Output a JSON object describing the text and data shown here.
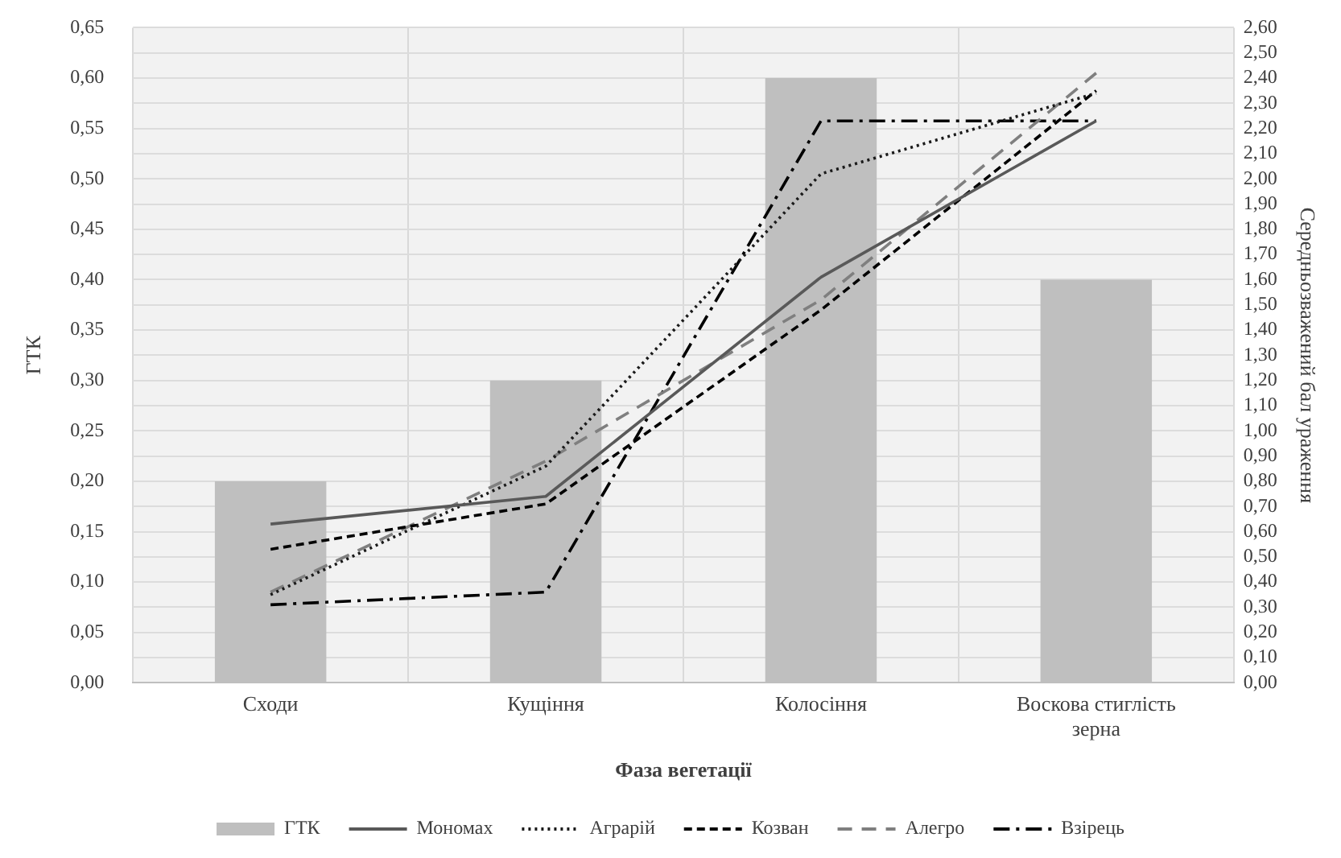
{
  "chart_data": {
    "type": "bar",
    "xlabel": "Фаза вегетації",
    "ylabel": "ГТК",
    "y2label": "Середньозважений бал ураження",
    "categories": [
      "Сходи",
      "Кущіння",
      "Колосіння",
      "Воскова стиглість зерна"
    ],
    "series": [
      {
        "name": "ГТК",
        "color": "#bfbfbf",
        "values": [
          0.2,
          0.3,
          0.6,
          0.4
        ]
      },
      {
        "name": "Мономах",
        "type": "line",
        "axis": "y2",
        "color": "#595959",
        "line_style": "solid",
        "values": [
          0.63,
          0.74,
          1.61,
          2.23
        ]
      },
      {
        "name": "Аграрій",
        "type": "line",
        "axis": "y2",
        "color": "#1a1a1a",
        "line_style": "dotted",
        "values": [
          0.35,
          0.86,
          2.02,
          2.34
        ]
      },
      {
        "name": "Козван",
        "type": "line",
        "axis": "y2",
        "color": "#000000",
        "line_style": "dashed",
        "values": [
          0.53,
          0.71,
          1.48,
          2.35
        ]
      },
      {
        "name": "Алегро",
        "type": "line",
        "axis": "y2",
        "color": "#7f7f7f",
        "line_style": "longdash",
        "values": [
          0.36,
          0.88,
          1.52,
          2.42
        ]
      },
      {
        "name": "Взірець",
        "type": "line",
        "axis": "y2",
        "color": "#000000",
        "line_style": "dashdot",
        "values": [
          0.31,
          0.36,
          2.23,
          2.23
        ]
      }
    ],
    "ylim": [
      0,
      0.65
    ],
    "yticks": [
      {
        "value": 0,
        "label": "0,00"
      },
      {
        "value": 0.05,
        "label": "0,05"
      },
      {
        "value": 0.1,
        "label": "0,10"
      },
      {
        "value": 0.15,
        "label": "0,15"
      },
      {
        "value": 0.2,
        "label": "0,20"
      },
      {
        "value": 0.25,
        "label": "0,25"
      },
      {
        "value": 0.3,
        "label": "0,30"
      },
      {
        "value": 0.35,
        "label": "0,35"
      },
      {
        "value": 0.4,
        "label": "0,40"
      },
      {
        "value": 0.45,
        "label": "0,45"
      },
      {
        "value": 0.5,
        "label": "0,50"
      },
      {
        "value": 0.55,
        "label": "0,55"
      },
      {
        "value": 0.6,
        "label": "0,60"
      },
      {
        "value": 0.65,
        "label": "0,65"
      }
    ],
    "y2lim": [
      0,
      2.6
    ],
    "y2ticks": [
      {
        "value": 0,
        "label": "0,00"
      },
      {
        "value": 0.1,
        "label": "0,10"
      },
      {
        "value": 0.2,
        "label": "0,20"
      },
      {
        "value": 0.3,
        "label": "0,30"
      },
      {
        "value": 0.4,
        "label": "0,40"
      },
      {
        "value": 0.5,
        "label": "0,50"
      },
      {
        "value": 0.6,
        "label": "0,60"
      },
      {
        "value": 0.7,
        "label": "0,70"
      },
      {
        "value": 0.8,
        "label": "0,80"
      },
      {
        "value": 0.9,
        "label": "0,90"
      },
      {
        "value": 1.0,
        "label": "1,00"
      },
      {
        "value": 1.1,
        "label": "1,10"
      },
      {
        "value": 1.2,
        "label": "1,20"
      },
      {
        "value": 1.3,
        "label": "1,30"
      },
      {
        "value": 1.4,
        "label": "1,40"
      },
      {
        "value": 1.5,
        "label": "1,50"
      },
      {
        "value": 1.6,
        "label": "1,60"
      },
      {
        "value": 1.7,
        "label": "1,70"
      },
      {
        "value": 1.8,
        "label": "1,80"
      },
      {
        "value": 1.9,
        "label": "1,90"
      },
      {
        "value": 2.0,
        "label": "2,00"
      },
      {
        "value": 2.1,
        "label": "2,10"
      },
      {
        "value": 2.2,
        "label": "2,20"
      },
      {
        "value": 2.3,
        "label": "2,30"
      },
      {
        "value": 2.4,
        "label": "2,40"
      },
      {
        "value": 2.5,
        "label": "2,50"
      },
      {
        "value": 2.6,
        "label": "2,60"
      }
    ],
    "grid": true,
    "legend": "bottom",
    "marker": "none"
  }
}
